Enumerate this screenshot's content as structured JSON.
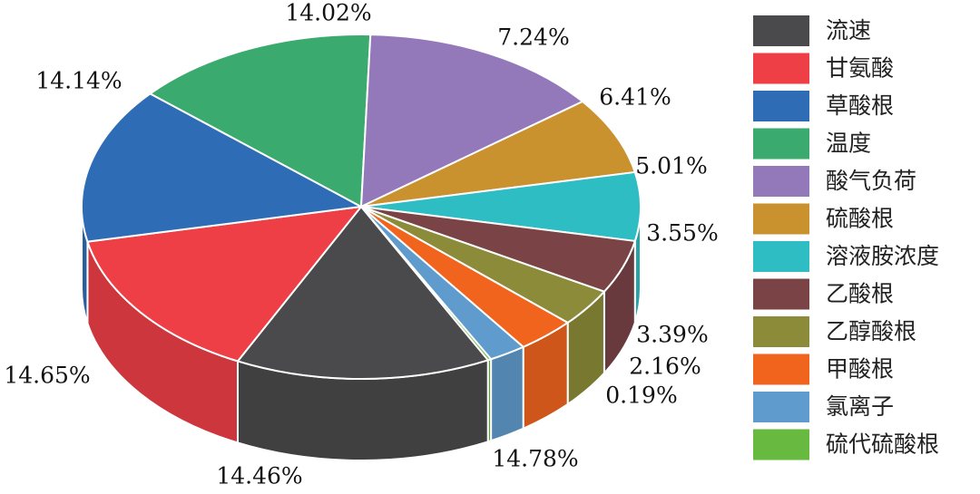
{
  "chart_data": {
    "type": "pie",
    "style": "3d",
    "legend_position": "right",
    "slices": [
      {
        "name": "流速",
        "value": 14.78,
        "label": "14.78%",
        "color": "#4a4a4c"
      },
      {
        "name": "甘氨酸",
        "value": 14.46,
        "label": "14.46%",
        "color": "#ee3f47"
      },
      {
        "name": "草酸根",
        "value": 14.65,
        "label": "14.65%",
        "color": "#2e6db5"
      },
      {
        "name": "温度",
        "value": 14.14,
        "label": "14.14%",
        "color": "#3aaa6e"
      },
      {
        "name": "酸气负荷",
        "value": 14.02,
        "label": "14.02%",
        "color": "#9378ba"
      },
      {
        "name": "硫酸根",
        "value": 7.24,
        "label": "7.24%",
        "color": "#c9922f"
      },
      {
        "name": "溶液胺浓度",
        "value": 6.41,
        "label": "6.41%",
        "color": "#2ebdc2"
      },
      {
        "name": "乙酸根",
        "value": 5.01,
        "label": "5.01%",
        "color": "#7a4447"
      },
      {
        "name": "乙醇酸根",
        "value": 3.55,
        "label": "3.55%",
        "color": "#8b8b39"
      },
      {
        "name": "甲酸根",
        "value": 3.39,
        "label": "3.39%",
        "color": "#f0641e"
      },
      {
        "name": "氯离子",
        "value": 2.16,
        "label": "2.16%",
        "color": "#5f9ccd"
      },
      {
        "name": "硫代硫酸根",
        "value": 0.19,
        "label": "0.19%",
        "color": "#68b940"
      }
    ]
  }
}
